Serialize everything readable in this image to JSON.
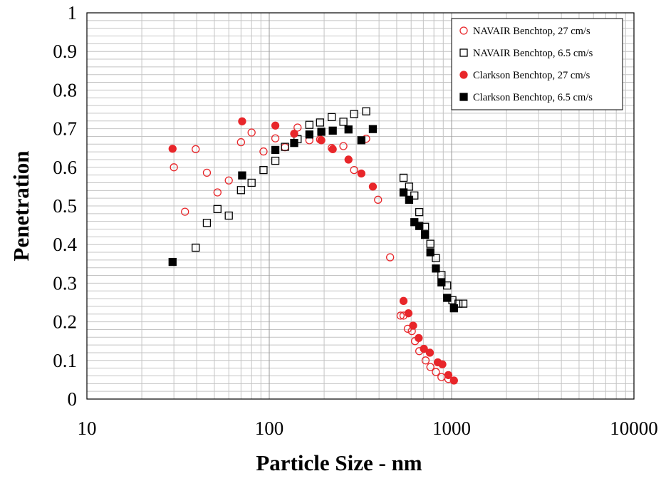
{
  "chart_data": {
    "type": "scatter",
    "title": "",
    "xlabel": "Particle Size - nm",
    "ylabel": "Penetration",
    "x_scale": "log",
    "xlim": [
      10,
      10000
    ],
    "ylim": [
      0,
      1
    ],
    "x_ticks": [
      "10",
      "100",
      "1000",
      "10000"
    ],
    "y_ticks": [
      "0",
      "0.1",
      "0.2",
      "0.3",
      "0.4",
      "0.5",
      "0.6",
      "0.7",
      "0.8",
      "0.9",
      "1"
    ],
    "grid": true,
    "legend_position": "top-right",
    "series": [
      {
        "name": "NAVAIR Benchtop, 27 cm/s",
        "marker": "open-circle",
        "color": "#e8262a",
        "points": [
          [
            30,
            0.6
          ],
          [
            34.5,
            0.485
          ],
          [
            39.5,
            0.647
          ],
          [
            45.5,
            0.586
          ],
          [
            52,
            0.535
          ],
          [
            60,
            0.566
          ],
          [
            70,
            0.665
          ],
          [
            80,
            0.69
          ],
          [
            93,
            0.641
          ],
          [
            108,
            0.675
          ],
          [
            122,
            0.652
          ],
          [
            143,
            0.703
          ],
          [
            166,
            0.67
          ],
          [
            190,
            0.672
          ],
          [
            220,
            0.65
          ],
          [
            255,
            0.655
          ],
          [
            292,
            0.593
          ],
          [
            340,
            0.674
          ],
          [
            395,
            0.516
          ],
          [
            460,
            0.367
          ],
          [
            525,
            0.216
          ],
          [
            545,
            0.216
          ],
          [
            575,
            0.182
          ],
          [
            605,
            0.176
          ],
          [
            630,
            0.15
          ],
          [
            665,
            0.124
          ],
          [
            720,
            0.1
          ],
          [
            765,
            0.083
          ],
          [
            820,
            0.07
          ],
          [
            880,
            0.057
          ],
          [
            960,
            0.052
          ]
        ]
      },
      {
        "name": "NAVAIR Benchtop, 6.5 cm/s",
        "marker": "open-square",
        "color": "#000000",
        "points": [
          [
            39.5,
            0.392
          ],
          [
            45.5,
            0.456
          ],
          [
            52,
            0.492
          ],
          [
            60,
            0.475
          ],
          [
            70,
            0.541
          ],
          [
            80,
            0.56
          ],
          [
            93,
            0.593
          ],
          [
            108,
            0.617
          ],
          [
            122,
            0.653
          ],
          [
            143,
            0.673
          ],
          [
            166,
            0.71
          ],
          [
            190,
            0.716
          ],
          [
            220,
            0.73
          ],
          [
            255,
            0.718
          ],
          [
            292,
            0.738
          ],
          [
            340,
            0.745
          ],
          [
            545,
            0.573
          ],
          [
            585,
            0.55
          ],
          [
            625,
            0.527
          ],
          [
            665,
            0.484
          ],
          [
            715,
            0.446
          ],
          [
            765,
            0.402
          ],
          [
            820,
            0.365
          ],
          [
            880,
            0.321
          ],
          [
            945,
            0.294
          ],
          [
            1010,
            0.256
          ],
          [
            1090,
            0.247
          ],
          [
            1160,
            0.247
          ]
        ]
      },
      {
        "name": "Clarkson Benchtop, 27 cm/s",
        "marker": "filled-circle",
        "color": "#e8262a",
        "points": [
          [
            29.5,
            0.648
          ],
          [
            71,
            0.719
          ],
          [
            108,
            0.708
          ],
          [
            137,
            0.687
          ],
          [
            193,
            0.67
          ],
          [
            223,
            0.647
          ],
          [
            272,
            0.62
          ],
          [
            320,
            0.584
          ],
          [
            370,
            0.55
          ],
          [
            545,
            0.254
          ],
          [
            580,
            0.222
          ],
          [
            615,
            0.19
          ],
          [
            660,
            0.158
          ],
          [
            705,
            0.13
          ],
          [
            760,
            0.12
          ],
          [
            840,
            0.095
          ],
          [
            890,
            0.09
          ],
          [
            960,
            0.062
          ],
          [
            1030,
            0.048
          ]
        ]
      },
      {
        "name": "Clarkson Benchtop, 6.5 cm/s",
        "marker": "filled-square",
        "color": "#000000",
        "points": [
          [
            29.5,
            0.355
          ],
          [
            71,
            0.579
          ],
          [
            108,
            0.645
          ],
          [
            137,
            0.663
          ],
          [
            166,
            0.685
          ],
          [
            193,
            0.692
          ],
          [
            223,
            0.695
          ],
          [
            272,
            0.698
          ],
          [
            320,
            0.67
          ],
          [
            370,
            0.699
          ],
          [
            545,
            0.535
          ],
          [
            585,
            0.516
          ],
          [
            625,
            0.458
          ],
          [
            665,
            0.448
          ],
          [
            715,
            0.425
          ],
          [
            765,
            0.38
          ],
          [
            820,
            0.338
          ],
          [
            880,
            0.302
          ],
          [
            945,
            0.262
          ],
          [
            1030,
            0.235
          ]
        ]
      }
    ]
  }
}
